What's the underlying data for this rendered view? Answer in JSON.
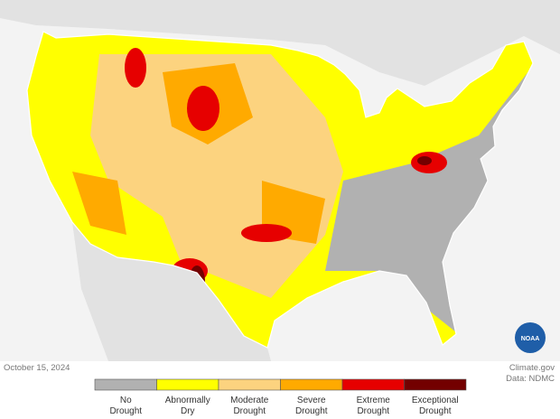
{
  "date": "October 15, 2024",
  "credit": "Climate.gov",
  "source": "Data: NDMC",
  "logo": "NOAA",
  "legend": {
    "items": [
      {
        "label": [
          "No",
          "Drought"
        ],
        "color": "#b1b1b1"
      },
      {
        "label": [
          "Abnormally",
          "Dry"
        ],
        "color": "#ffff00"
      },
      {
        "label": [
          "Moderate",
          "Drought"
        ],
        "color": "#fcd37f"
      },
      {
        "label": [
          "Severe",
          "Drought"
        ],
        "color": "#ffaa00"
      },
      {
        "label": [
          "Extreme",
          "Drought"
        ],
        "color": "#e60000"
      },
      {
        "label": [
          "Exceptional",
          "Drought"
        ],
        "color": "#730000"
      }
    ]
  }
}
